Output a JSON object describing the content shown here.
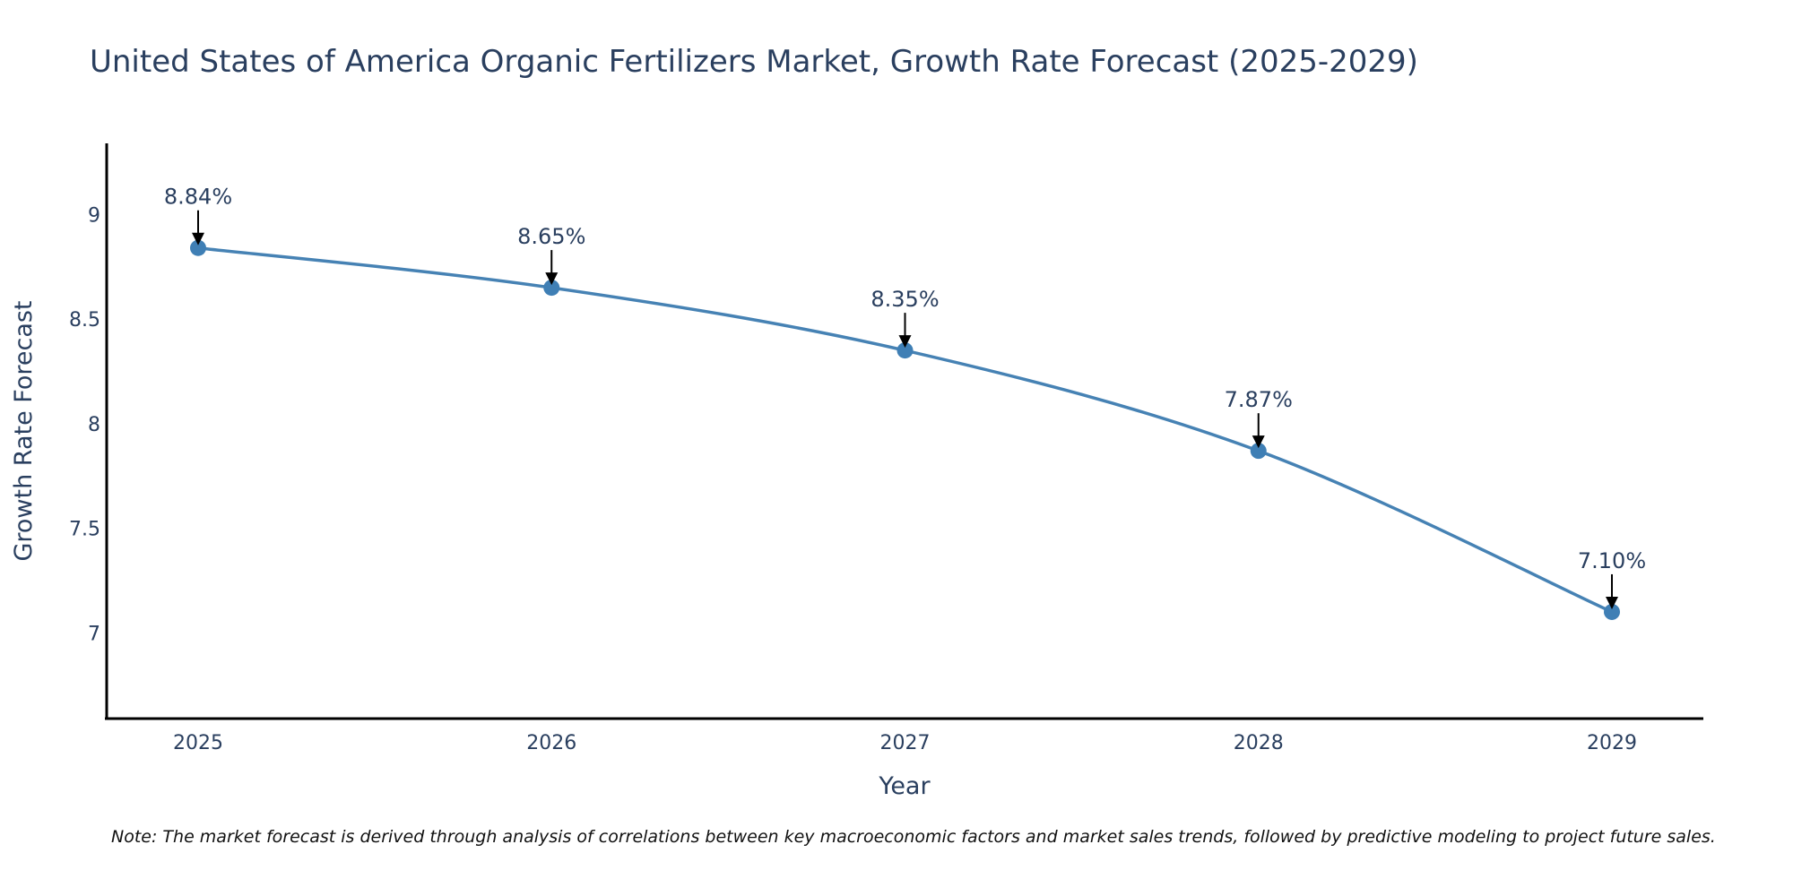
{
  "chart_data": {
    "type": "line",
    "title": "United States of America Organic Fertilizers Market, Growth Rate Forecast (2025-2029)",
    "xlabel": "Year",
    "ylabel": "Growth Rate Forecast",
    "categories": [
      "2025",
      "2026",
      "2027",
      "2028",
      "2029"
    ],
    "series": [
      {
        "name": "Growth Rate Forecast",
        "values": [
          8.84,
          8.65,
          8.35,
          7.87,
          7.1
        ]
      }
    ],
    "data_labels": [
      "8.84%",
      "8.65%",
      "8.35%",
      "7.87%",
      "7.10%"
    ],
    "y_ticks": [
      7,
      7.5,
      8,
      8.5,
      9
    ],
    "y_tick_labels": [
      "7",
      "7.5",
      "8",
      "8.5",
      "9"
    ],
    "ylim": [
      6.59,
      9.34
    ],
    "grid": false,
    "line_color": "#4682b4",
    "marker_color": "#3f7fb5",
    "note": "Note: The market forecast is derived through analysis of correlations between key macroeconomic factors and market sales trends, followed by predictive modeling to project future sales."
  }
}
